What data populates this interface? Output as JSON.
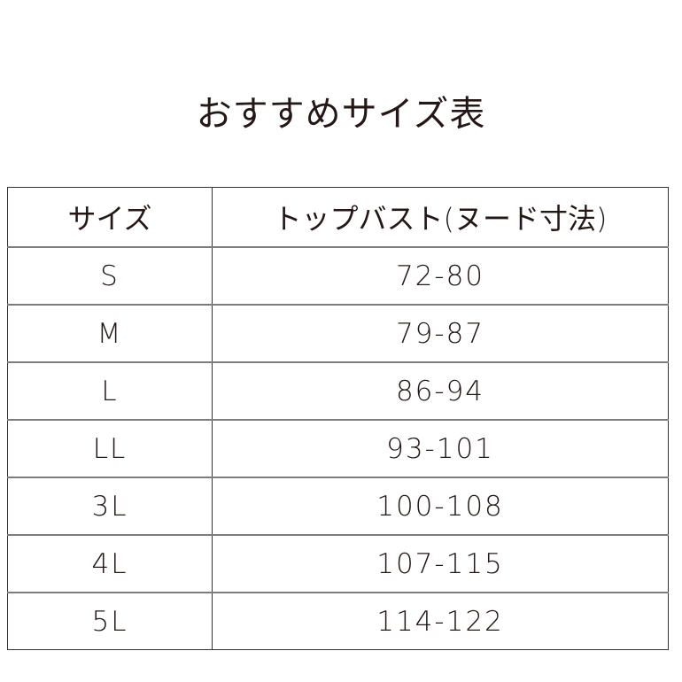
{
  "title": "おすすめサイズ表",
  "table": {
    "headers": [
      "サイズ",
      "トップバスト(ヌード寸法)"
    ],
    "rows": [
      [
        "S",
        "72-80"
      ],
      [
        "M",
        "79-87"
      ],
      [
        "L",
        "86-94"
      ],
      [
        "LL",
        "93-101"
      ],
      [
        "3L",
        "100-108"
      ],
      [
        "4L",
        "107-115"
      ],
      [
        "5L",
        "114-122"
      ]
    ]
  }
}
